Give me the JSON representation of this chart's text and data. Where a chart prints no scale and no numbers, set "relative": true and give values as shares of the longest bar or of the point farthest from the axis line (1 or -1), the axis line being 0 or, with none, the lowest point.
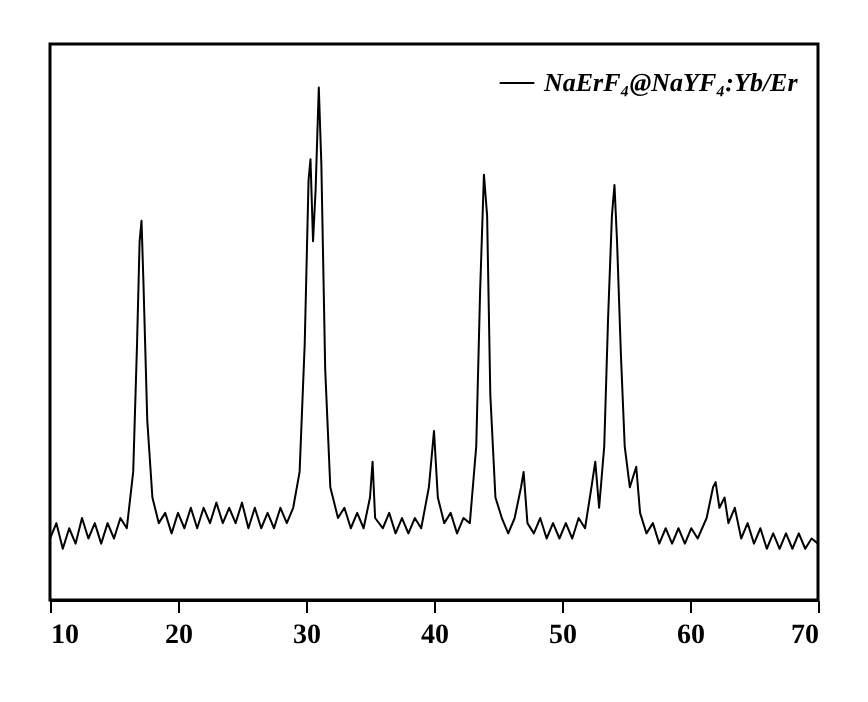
{
  "chart_data": {
    "type": "line",
    "relative": true,
    "xlim": [
      10,
      70
    ],
    "xticks": [
      10,
      20,
      30,
      40,
      50,
      60,
      70
    ],
    "grid": false,
    "legend": "top right",
    "marker": "none",
    "line_style": "solid",
    "x": [
      10,
      10.5,
      11,
      11.5,
      12,
      12.5,
      13,
      13.5,
      14,
      14.5,
      15,
      15.5,
      16,
      16.5,
      16.8,
      17.0,
      17.15,
      17.3,
      17.6,
      18,
      18.5,
      19,
      19.5,
      20,
      20.5,
      21,
      21.5,
      22,
      22.5,
      23,
      23.5,
      24,
      24.5,
      25,
      25.5,
      26,
      26.5,
      27,
      27.5,
      28,
      28.5,
      29,
      29.5,
      29.9,
      30.2,
      30.35,
      30.55,
      30.75,
      31.0,
      31.2,
      31.5,
      31.9,
      32.5,
      33,
      33.5,
      34,
      34.5,
      35,
      35.2,
      35.4,
      36,
      36.5,
      37,
      37.5,
      38,
      38.5,
      39,
      39.6,
      40.0,
      40.3,
      40.8,
      41.3,
      41.8,
      42.3,
      42.8,
      43.3,
      43.6,
      43.9,
      44.15,
      44.4,
      44.8,
      45.3,
      45.8,
      46.3,
      46.8,
      47.0,
      47.3,
      47.8,
      48.3,
      48.8,
      49.3,
      49.8,
      50.3,
      50.8,
      51.3,
      51.8,
      52.3,
      52.6,
      52.9,
      53.3,
      53.6,
      53.9,
      54.1,
      54.3,
      54.6,
      54.9,
      55.3,
      55.8,
      56.1,
      56.6,
      57.1,
      57.6,
      58.1,
      58.6,
      59.1,
      59.6,
      60.1,
      60.6,
      61.3,
      61.8,
      62.0,
      62.3,
      62.7,
      63.0,
      63.5,
      64,
      64.5,
      65,
      65.5,
      66,
      66.5,
      67,
      67.5,
      68,
      68.5,
      69,
      69.5,
      70
    ],
    "series": [
      {
        "name": "NaErF₄@NaYF₄:Yb/Er",
        "color": "#000000",
        "values": [
          0.12,
          0.15,
          0.1,
          0.14,
          0.11,
          0.16,
          0.12,
          0.15,
          0.11,
          0.15,
          0.12,
          0.16,
          0.14,
          0.25,
          0.5,
          0.7,
          0.74,
          0.62,
          0.35,
          0.2,
          0.15,
          0.17,
          0.13,
          0.17,
          0.14,
          0.18,
          0.14,
          0.18,
          0.15,
          0.19,
          0.15,
          0.18,
          0.15,
          0.19,
          0.14,
          0.18,
          0.14,
          0.17,
          0.14,
          0.18,
          0.15,
          0.18,
          0.25,
          0.5,
          0.82,
          0.86,
          0.7,
          0.8,
          1.0,
          0.85,
          0.45,
          0.22,
          0.16,
          0.18,
          0.14,
          0.17,
          0.14,
          0.2,
          0.27,
          0.16,
          0.14,
          0.17,
          0.13,
          0.16,
          0.13,
          0.16,
          0.14,
          0.22,
          0.33,
          0.2,
          0.15,
          0.17,
          0.13,
          0.16,
          0.15,
          0.3,
          0.6,
          0.83,
          0.75,
          0.4,
          0.2,
          0.16,
          0.13,
          0.16,
          0.22,
          0.25,
          0.15,
          0.13,
          0.16,
          0.12,
          0.15,
          0.12,
          0.15,
          0.12,
          0.16,
          0.14,
          0.22,
          0.27,
          0.18,
          0.3,
          0.55,
          0.75,
          0.81,
          0.7,
          0.48,
          0.3,
          0.22,
          0.26,
          0.17,
          0.13,
          0.15,
          0.11,
          0.14,
          0.11,
          0.14,
          0.11,
          0.14,
          0.12,
          0.16,
          0.22,
          0.23,
          0.18,
          0.2,
          0.15,
          0.18,
          0.12,
          0.15,
          0.11,
          0.14,
          0.1,
          0.13,
          0.1,
          0.13,
          0.1,
          0.13,
          0.1,
          0.12,
          0.11
        ]
      }
    ]
  }
}
